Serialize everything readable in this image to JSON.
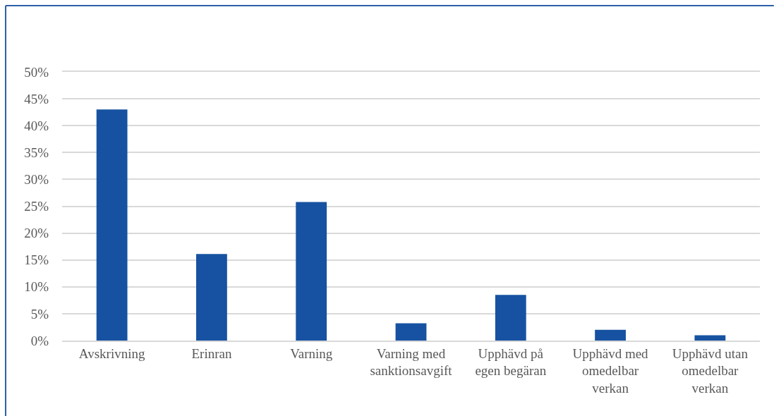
{
  "chart_data": {
    "type": "bar",
    "categories": [
      "Avskrivning",
      "Erinran",
      "Varning",
      "Varning med sanktionsavgift",
      "Upphävd på egen begäran",
      "Upphävd med omedelbar verkan",
      "Upphävd utan omedelbar verkan"
    ],
    "values": [
      43.0,
      16.1,
      25.8,
      3.2,
      8.5,
      2.0,
      1.0
    ],
    "color": "#1652a1",
    "ylim": [
      0,
      50
    ],
    "yticks": [
      {
        "value": 0,
        "label": "0%"
      },
      {
        "value": 5,
        "label": "5%"
      },
      {
        "value": 10,
        "label": "10%"
      },
      {
        "value": 15,
        "label": "15%"
      },
      {
        "value": 20,
        "label": "20%"
      },
      {
        "value": 25,
        "label": "25%"
      },
      {
        "value": 30,
        "label": "30%"
      },
      {
        "value": 35,
        "label": "35%"
      },
      {
        "value": 40,
        "label": "40%"
      },
      {
        "value": 45,
        "label": "45%"
      },
      {
        "value": 50,
        "label": "50%"
      }
    ],
    "grid": "y"
  }
}
